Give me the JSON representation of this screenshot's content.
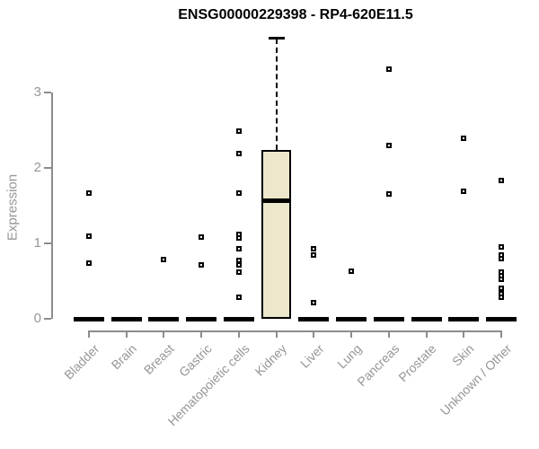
{
  "window": {
    "background": "#ffffff"
  },
  "chart_data": {
    "type": "boxplot",
    "title": "ENSG00000229398 - RP4-620E11.5",
    "ylabel": "Expression",
    "xlabel": "",
    "ylim": [
      0,
      3.9
    ],
    "yticks": [
      0,
      1,
      2,
      3
    ],
    "grid": false,
    "legend": null,
    "categories": [
      "Bladder",
      "Brain",
      "Breast",
      "Gastric",
      "Hematopoietic cells",
      "Kidney",
      "Liver",
      "Lung",
      "Pancreas",
      "Prostate",
      "Skin",
      "Unknown / Other"
    ],
    "boxes": [
      {
        "category": "Bladder",
        "q1": 0,
        "median": 0,
        "q3": 0,
        "whisker_low": 0,
        "whisker_high": 0,
        "outliers": [
          1.67,
          1.1,
          0.74
        ]
      },
      {
        "category": "Brain",
        "q1": 0,
        "median": 0,
        "q3": 0,
        "whisker_low": 0,
        "whisker_high": 0,
        "outliers": []
      },
      {
        "category": "Breast",
        "q1": 0,
        "median": 0,
        "q3": 0,
        "whisker_low": 0,
        "whisker_high": 0,
        "outliers": [
          0.79
        ]
      },
      {
        "category": "Gastric",
        "q1": 0,
        "median": 0,
        "q3": 0,
        "whisker_low": 0,
        "whisker_high": 0,
        "outliers": [
          1.08,
          0.72
        ]
      },
      {
        "category": "Hematopoietic cells",
        "q1": 0,
        "median": 0,
        "q3": 0,
        "whisker_low": 0,
        "whisker_high": 0,
        "outliers": [
          2.49,
          2.19,
          1.67,
          1.12,
          1.07,
          0.93,
          0.77,
          0.72,
          0.62,
          0.28
        ]
      },
      {
        "category": "Kidney",
        "q1": 0,
        "median": 1.57,
        "q3": 2.24,
        "whisker_low": 0,
        "whisker_high": 3.72,
        "outliers": []
      },
      {
        "category": "Liver",
        "q1": 0,
        "median": 0,
        "q3": 0,
        "whisker_low": 0,
        "whisker_high": 0,
        "outliers": [
          0.93,
          0.85,
          0.21
        ]
      },
      {
        "category": "Lung",
        "q1": 0,
        "median": 0,
        "q3": 0,
        "whisker_low": 0,
        "whisker_high": 0,
        "outliers": [
          0.63
        ]
      },
      {
        "category": "Pancreas",
        "q1": 0,
        "median": 0,
        "q3": 0,
        "whisker_low": 0,
        "whisker_high": 0,
        "outliers": [
          3.31,
          2.3,
          1.65
        ]
      },
      {
        "category": "Prostate",
        "q1": 0,
        "median": 0,
        "q3": 0,
        "whisker_low": 0,
        "whisker_high": 0,
        "outliers": []
      },
      {
        "category": "Skin",
        "q1": 0,
        "median": 0,
        "q3": 0,
        "whisker_low": 0,
        "whisker_high": 0,
        "outliers": [
          2.39,
          1.69
        ]
      },
      {
        "category": "Unknown / Other",
        "q1": 0,
        "median": 0,
        "q3": 0,
        "whisker_low": 0,
        "whisker_high": 0,
        "outliers": [
          1.83,
          0.95,
          0.85,
          0.8,
          0.62,
          0.57,
          0.52,
          0.4,
          0.33,
          0.28
        ]
      }
    ],
    "colors": {
      "box_fill": "#ede7cb",
      "box_border": "#000000",
      "median": "#000000",
      "outlier_border": "#000000",
      "outlier_fill": "#ffffff",
      "axis": "#8c8c8c",
      "tick_text": "#969696",
      "title_text": "#000000"
    }
  }
}
